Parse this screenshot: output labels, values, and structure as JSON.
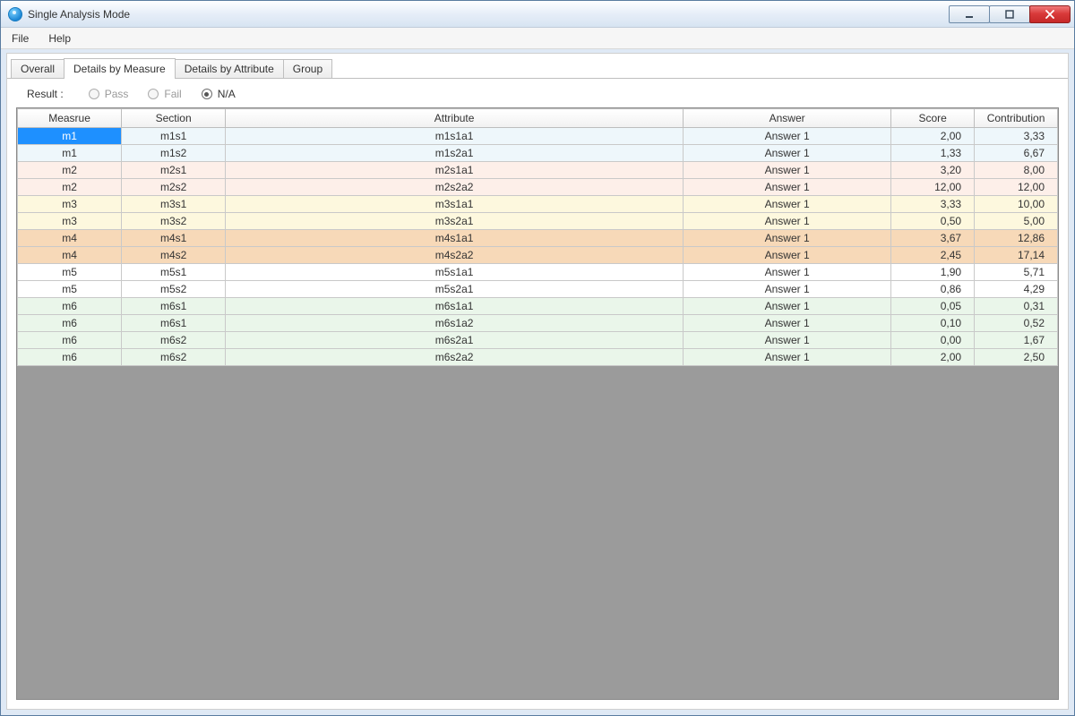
{
  "window": {
    "title": "Single Analysis Mode"
  },
  "menu": {
    "file": "File",
    "help": "Help"
  },
  "tabs": {
    "items": [
      {
        "label": "Overall"
      },
      {
        "label": "Details by Measure"
      },
      {
        "label": "Details by Attribute"
      },
      {
        "label": "Group"
      }
    ],
    "active_index": 1
  },
  "result": {
    "label": "Result :",
    "options": [
      {
        "label": "Pass"
      },
      {
        "label": "Fail"
      },
      {
        "label": "N/A"
      }
    ],
    "selected_index": 2
  },
  "table": {
    "columns": [
      "Measrue",
      "Section",
      "Attribute",
      "Answer",
      "Score",
      "Contribution"
    ],
    "col_widths_pct": [
      10,
      10,
      44,
      20,
      8,
      8
    ],
    "selected_row_index": 0,
    "row_group_colors": [
      "#eef7fb",
      "#eef7fb",
      "#fdefe9",
      "#fdefe9",
      "#fdf8de",
      "#fdf8de",
      "#f7d9b8",
      "#f7d9b8",
      "#ffffff",
      "#ffffff",
      "#eaf6ea",
      "#eaf6ea",
      "#eaf6ea",
      "#eaf6ea"
    ],
    "rows": [
      {
        "measure": "m1",
        "section": "m1s1",
        "attribute": "m1s1a1",
        "answer": "Answer 1",
        "score": "2,00",
        "contribution": "3,33"
      },
      {
        "measure": "m1",
        "section": "m1s2",
        "attribute": "m1s2a1",
        "answer": "Answer 1",
        "score": "1,33",
        "contribution": "6,67"
      },
      {
        "measure": "m2",
        "section": "m2s1",
        "attribute": "m2s1a1",
        "answer": "Answer 1",
        "score": "3,20",
        "contribution": "8,00"
      },
      {
        "measure": "m2",
        "section": "m2s2",
        "attribute": "m2s2a2",
        "answer": "Answer 1",
        "score": "12,00",
        "contribution": "12,00"
      },
      {
        "measure": "m3",
        "section": "m3s1",
        "attribute": "m3s1a1",
        "answer": "Answer 1",
        "score": "3,33",
        "contribution": "10,00"
      },
      {
        "measure": "m3",
        "section": "m3s2",
        "attribute": "m3s2a1",
        "answer": "Answer 1",
        "score": "0,50",
        "contribution": "5,00"
      },
      {
        "measure": "m4",
        "section": "m4s1",
        "attribute": "m4s1a1",
        "answer": "Answer 1",
        "score": "3,67",
        "contribution": "12,86"
      },
      {
        "measure": "m4",
        "section": "m4s2",
        "attribute": "m4s2a2",
        "answer": "Answer 1",
        "score": "2,45",
        "contribution": "17,14"
      },
      {
        "measure": "m5",
        "section": "m5s1",
        "attribute": "m5s1a1",
        "answer": "Answer 1",
        "score": "1,90",
        "contribution": "5,71"
      },
      {
        "measure": "m5",
        "section": "m5s2",
        "attribute": "m5s2a1",
        "answer": "Answer 1",
        "score": "0,86",
        "contribution": "4,29"
      },
      {
        "measure": "m6",
        "section": "m6s1",
        "attribute": "m6s1a1",
        "answer": "Answer 1",
        "score": "0,05",
        "contribution": "0,31"
      },
      {
        "measure": "m6",
        "section": "m6s1",
        "attribute": "m6s1a2",
        "answer": "Answer 1",
        "score": "0,10",
        "contribution": "0,52"
      },
      {
        "measure": "m6",
        "section": "m6s2",
        "attribute": "m6s2a1",
        "answer": "Answer 1",
        "score": "0,00",
        "contribution": "1,67"
      },
      {
        "measure": "m6",
        "section": "m6s2",
        "attribute": "m6s2a2",
        "answer": "Answer 1",
        "score": "2,00",
        "contribution": "2,50"
      }
    ]
  }
}
